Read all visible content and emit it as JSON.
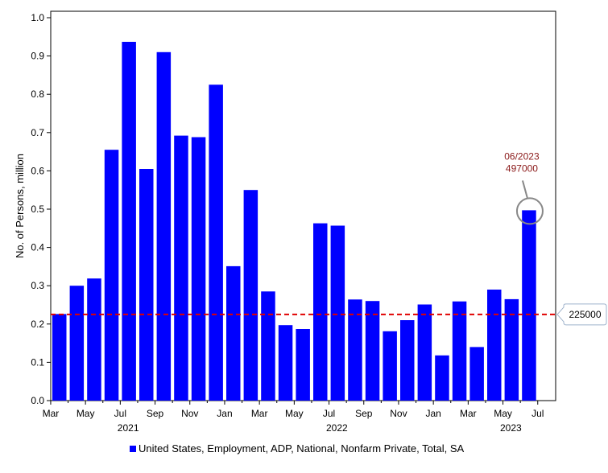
{
  "chart_data": {
    "type": "bar",
    "ylabel": "No. of Persons, million",
    "ylim": [
      0,
      1.0
    ],
    "yticks": [
      "0.0",
      "0.1",
      "0.2",
      "0.3",
      "0.4",
      "0.5",
      "0.6",
      "0.7",
      "0.8",
      "0.9",
      "1.0"
    ],
    "categories": [
      "2021-03",
      "2021-04",
      "2021-05",
      "2021-06",
      "2021-07",
      "2021-08",
      "2021-09",
      "2021-10",
      "2021-11",
      "2021-12",
      "2022-01",
      "2022-02",
      "2022-03",
      "2022-04",
      "2022-05",
      "2022-06",
      "2022-07",
      "2022-08",
      "2022-09",
      "2022-10",
      "2022-11",
      "2022-12",
      "2023-01",
      "2023-02",
      "2023-03",
      "2023-04",
      "2023-05",
      "2023-06"
    ],
    "series": [
      {
        "name": "United States, Employment, ADP, National, Nonfarm Private, Total, SA",
        "color": "#0000ff",
        "values": [
          0.226,
          0.3,
          0.319,
          0.655,
          0.937,
          0.605,
          0.91,
          0.692,
          0.688,
          0.825,
          0.351,
          0.55,
          0.285,
          0.197,
          0.187,
          0.463,
          0.457,
          0.264,
          0.26,
          0.181,
          0.21,
          0.251,
          0.118,
          0.259,
          0.14,
          0.29,
          0.265,
          0.497
        ]
      }
    ],
    "x_month_labels": [
      "Mar",
      "May",
      "Jul",
      "Sep",
      "Nov",
      "Jan",
      "Mar",
      "May",
      "Jul",
      "Sep",
      "Nov",
      "Jan",
      "Mar",
      "May",
      "Jul"
    ],
    "x_year_labels": [
      "2021",
      "2022",
      "2023"
    ],
    "reference_line": {
      "value": 0.225,
      "label": "225000",
      "color": "#e00000",
      "style": "dashed"
    },
    "annotation": {
      "date": "06/2023",
      "value_label": "497000",
      "color": "#8b1a1a"
    },
    "legend": {
      "position": "bottom",
      "label": "United States, Employment, ADP, National, Nonfarm Private, Total, SA"
    },
    "grid": false
  }
}
